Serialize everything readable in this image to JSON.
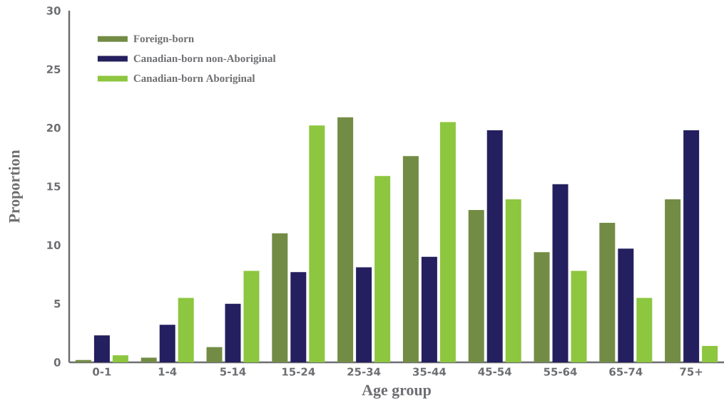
{
  "chart_data": {
    "type": "bar",
    "xlabel": "Age group",
    "ylabel": "Proportion",
    "categories": [
      "0-1",
      "1-4",
      "5-14",
      "15-24",
      "25-34",
      "35-44",
      "45-54",
      "55-64",
      "65-74",
      "75+"
    ],
    "series": [
      {
        "name": "Foreign-born",
        "color": "#738c45",
        "values": [
          0.2,
          0.4,
          1.3,
          11.0,
          20.9,
          17.6,
          13.0,
          9.4,
          11.9,
          13.9
        ]
      },
      {
        "name": "Canadian-born non-Aboriginal",
        "color": "#241f5e",
        "values": [
          2.3,
          3.2,
          5.0,
          7.7,
          8.1,
          9.0,
          19.8,
          15.2,
          9.7,
          19.8
        ]
      },
      {
        "name": "Canadian-born Aboriginal",
        "color": "#8dc63f",
        "values": [
          0.6,
          5.5,
          7.8,
          20.2,
          15.9,
          20.5,
          13.9,
          7.8,
          5.5,
          1.4
        ]
      }
    ],
    "ylim": [
      0,
      30
    ],
    "yticks": [
      0,
      5,
      10,
      15,
      20,
      25,
      30
    ],
    "grid": false,
    "legend": "top left"
  }
}
